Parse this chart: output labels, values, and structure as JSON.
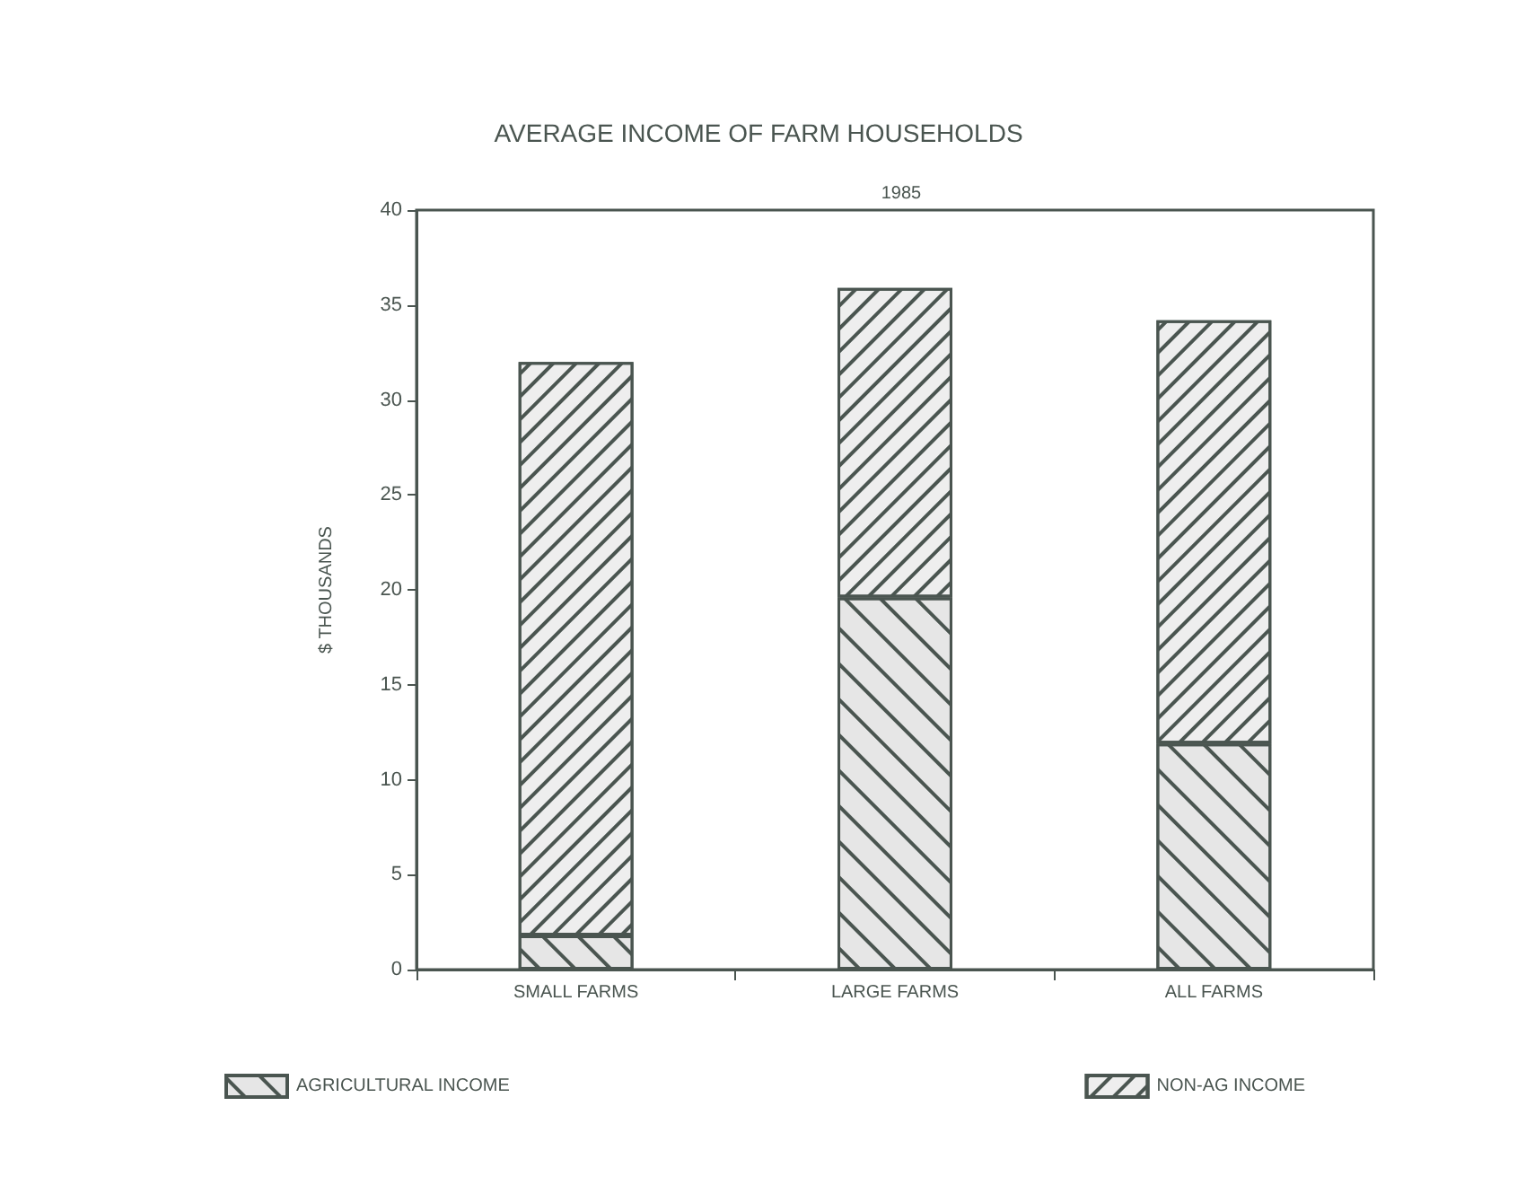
{
  "chart_data": {
    "type": "bar",
    "title": "AVERAGE INCOME OF FARM HOUSEHOLDS",
    "subtitle": "1985",
    "ylabel": "$ THOUSANDS",
    "categories": [
      "SMALL FARMS",
      "LARGE FARMS",
      "ALL FARMS"
    ],
    "stacked": true,
    "series": [
      {
        "name": "AGRICULTURAL INCOME",
        "color": "#e6e6e6",
        "values": [
          1.8,
          19.6,
          11.9
        ]
      },
      {
        "name": "NON-AG INCOME",
        "color": "#eeeeee",
        "values": [
          30.2,
          16.3,
          22.3
        ]
      }
    ],
    "ylim": [
      0,
      40
    ],
    "yticks": [
      0,
      5,
      10,
      15,
      20,
      25,
      30,
      35,
      40
    ],
    "grid": false,
    "legend": "bottom"
  }
}
